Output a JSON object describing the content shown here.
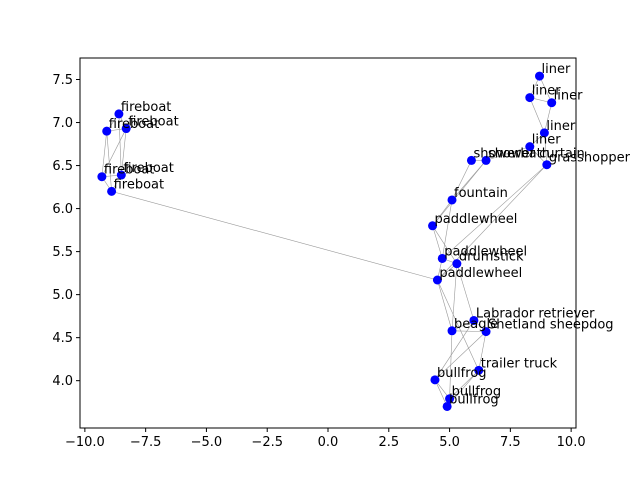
{
  "chart_data": {
    "type": "scatter",
    "title": "",
    "xlabel": "",
    "ylabel": "",
    "xlim": [
      -10.2,
      10.2
    ],
    "ylim": [
      3.45,
      7.75
    ],
    "grid": false,
    "xticks": [
      -10.0,
      -7.5,
      -5.0,
      -2.5,
      0.0,
      2.5,
      5.0,
      7.5,
      10.0
    ],
    "xtick_labels": [
      "−10.0",
      "−7.5",
      "−5.0",
      "−2.5",
      "0.0",
      "2.5",
      "5.0",
      "7.5",
      "10.0"
    ],
    "yticks": [
      4.0,
      4.5,
      5.0,
      5.5,
      6.0,
      6.5,
      7.0,
      7.5
    ],
    "ytick_labels": [
      "4.0",
      "4.5",
      "5.0",
      "5.5",
      "6.0",
      "6.5",
      "7.0",
      "7.5"
    ],
    "point_color": "#0000ff",
    "edge_color": "#999999",
    "points": [
      {
        "label": "liner",
        "x": 8.7,
        "y": 7.54
      },
      {
        "label": "liner",
        "x": 8.3,
        "y": 7.29
      },
      {
        "label": "liner",
        "x": 9.2,
        "y": 7.23
      },
      {
        "label": "liner",
        "x": 8.9,
        "y": 6.88
      },
      {
        "label": "liner",
        "x": 8.3,
        "y": 6.72
      },
      {
        "label": "showerbath",
        "x": 5.9,
        "y": 6.56
      },
      {
        "label": "shower curtain",
        "x": 6.5,
        "y": 6.56
      },
      {
        "label": "grasshopper",
        "x": 9.0,
        "y": 6.51
      },
      {
        "label": "fountain",
        "x": 5.1,
        "y": 6.1
      },
      {
        "label": "paddlewheel",
        "x": 4.3,
        "y": 5.8
      },
      {
        "label": "paddlewheel",
        "x": 4.7,
        "y": 5.42
      },
      {
        "label": "drumstick",
        "x": 5.3,
        "y": 5.36
      },
      {
        "label": "paddlewheel",
        "x": 4.5,
        "y": 5.17
      },
      {
        "label": "Labrador retriever",
        "x": 6.0,
        "y": 4.7
      },
      {
        "label": "beagle",
        "x": 5.1,
        "y": 4.58
      },
      {
        "label": "Shetland sheepdog",
        "x": 6.5,
        "y": 4.57
      },
      {
        "label": "trailer truck",
        "x": 6.2,
        "y": 4.12
      },
      {
        "label": "bullfrog",
        "x": 4.4,
        "y": 4.01
      },
      {
        "label": "bullfrog",
        "x": 5.0,
        "y": 3.79
      },
      {
        "label": "bullfrog",
        "x": 4.9,
        "y": 3.7
      },
      {
        "label": "fireboat",
        "x": -8.6,
        "y": 7.1
      },
      {
        "label": "fireboat",
        "x": -9.1,
        "y": 6.9
      },
      {
        "label": "fireboat",
        "x": -8.3,
        "y": 6.93
      },
      {
        "label": "fireboat",
        "x": -8.5,
        "y": 6.39
      },
      {
        "label": "fireboat",
        "x": -9.3,
        "y": 6.37
      },
      {
        "label": "fireboat",
        "x": -8.9,
        "y": 6.2
      }
    ],
    "edges": [
      [
        0,
        1
      ],
      [
        0,
        2
      ],
      [
        1,
        2
      ],
      [
        1,
        3
      ],
      [
        2,
        3
      ],
      [
        3,
        4
      ],
      [
        4,
        6
      ],
      [
        4,
        7
      ],
      [
        3,
        7
      ],
      [
        5,
        6
      ],
      [
        5,
        8
      ],
      [
        6,
        8
      ],
      [
        6,
        9
      ],
      [
        7,
        10
      ],
      [
        7,
        12
      ],
      [
        8,
        9
      ],
      [
        8,
        10
      ],
      [
        9,
        10
      ],
      [
        9,
        11
      ],
      [
        10,
        11
      ],
      [
        10,
        12
      ],
      [
        11,
        12
      ],
      [
        11,
        13
      ],
      [
        11,
        14
      ],
      [
        12,
        14
      ],
      [
        12,
        16
      ],
      [
        13,
        14
      ],
      [
        13,
        15
      ],
      [
        14,
        15
      ],
      [
        15,
        16
      ],
      [
        15,
        17
      ],
      [
        16,
        18
      ],
      [
        16,
        19
      ],
      [
        17,
        18
      ],
      [
        17,
        19
      ],
      [
        18,
        19
      ],
      [
        13,
        17
      ],
      [
        14,
        18
      ],
      [
        20,
        21
      ],
      [
        20,
        22
      ],
      [
        21,
        22
      ],
      [
        20,
        23
      ],
      [
        21,
        24
      ],
      [
        22,
        23
      ],
      [
        23,
        24
      ],
      [
        23,
        25
      ],
      [
        24,
        25
      ],
      [
        21,
        25
      ],
      [
        22,
        24
      ],
      [
        25,
        12
      ]
    ]
  }
}
